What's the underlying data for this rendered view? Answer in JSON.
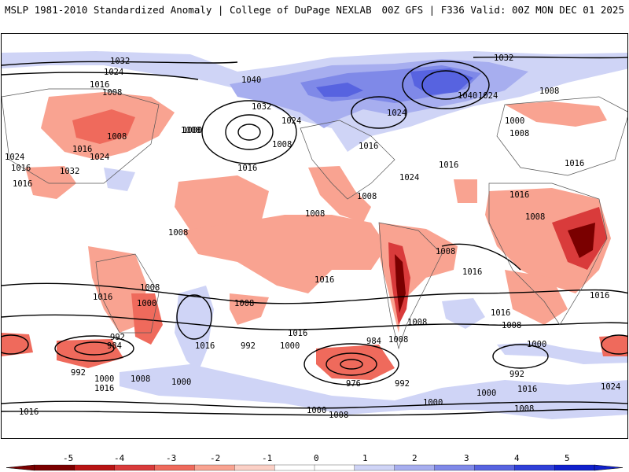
{
  "header": {
    "left_title": "MSLP 1981-2010 Standardized Anomaly | College of DuPage NEXLAB",
    "right_title": "00Z GFS | F336 Valid: 00Z MON DEC 01 2025"
  },
  "colorbar": {
    "ticks": [
      "-5",
      "-4",
      "-3",
      "-2",
      "-1",
      "0",
      "1",
      "2",
      "3",
      "4",
      "5"
    ],
    "colors": [
      "#7a0000",
      "#b81414",
      "#d93b3b",
      "#ef6a5c",
      "#f9a391",
      "#fbd0c6",
      "#ffffff",
      "#ffffff",
      "#cfd4f6",
      "#a7aeef",
      "#7f89e8",
      "#5763e0",
      "#2f3fd8",
      "#1020cc"
    ]
  },
  "contours": {
    "labels": [
      "1032",
      "1024",
      "1016",
      "1008",
      "1040",
      "1032",
      "1024",
      "1032",
      "1040",
      "1024",
      "1008",
      "1000",
      "1008",
      "1008",
      "1016",
      "1016",
      "1008",
      "1000",
      "1008",
      "1016",
      "1024",
      "1016",
      "1032",
      "1024",
      "1016",
      "1016",
      "1024",
      "1008",
      "1016",
      "1008",
      "1008",
      "1008",
      "1008",
      "1016",
      "1016",
      "1000",
      "1008",
      "992",
      "984",
      "1016",
      "1016",
      "992",
      "1000",
      "1008",
      "984",
      "1008",
      "976",
      "992",
      "1000",
      "1008",
      "992",
      "1016",
      "1024",
      "1000",
      "1016",
      "1000",
      "1016",
      "1008",
      "1000",
      "1008",
      "1016",
      "1000",
      "1008",
      "992",
      "1024",
      "1016",
      "1016",
      "1000",
      "1008",
      "1016"
    ]
  }
}
